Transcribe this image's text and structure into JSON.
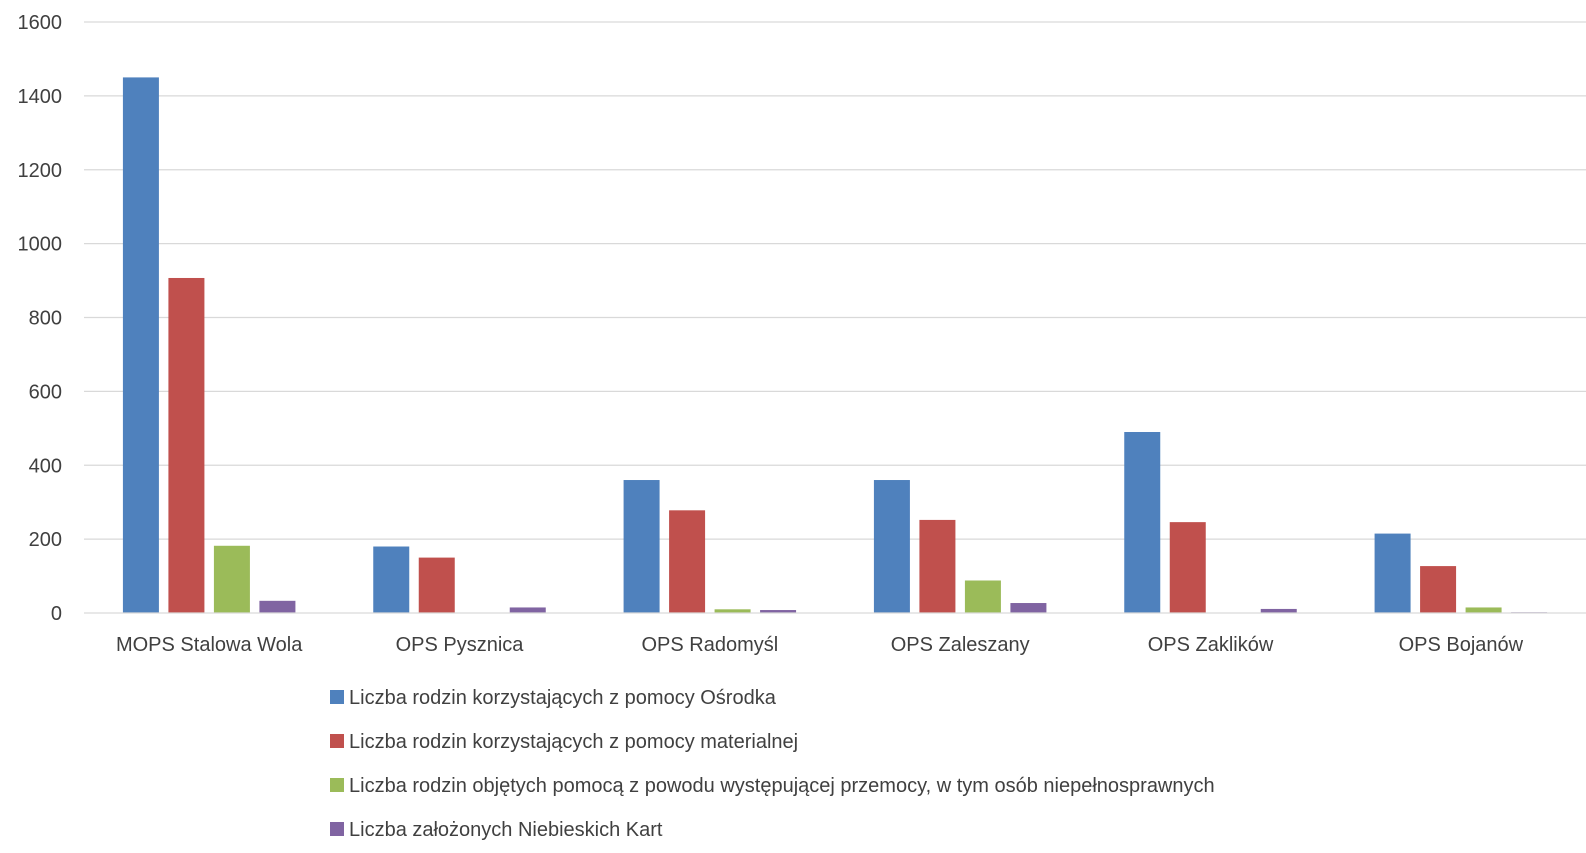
{
  "chart_data": {
    "type": "bar",
    "title": "",
    "xlabel": "",
    "ylabel": "",
    "ylim": [
      0,
      1600
    ],
    "yticks": [
      0,
      200,
      400,
      600,
      800,
      1000,
      1200,
      1400,
      1600
    ],
    "grid": true,
    "legend_position": "bottom",
    "categories": [
      "MOPS Stalowa Wola",
      "OPS Pysznica",
      "OPS Radomyśl",
      "OPS Zaleszany",
      "OPS Zaklików",
      "OPS Bojanów"
    ],
    "series": [
      {
        "name": "Liczba rodzin korzystających  z pomocy Ośrodka",
        "color": "#4f81bd",
        "values": [
          1450,
          180,
          360,
          360,
          490,
          215
        ]
      },
      {
        "name": "Liczba rodzin korzystających z pomocy materialnej",
        "color": "#c0504d",
        "values": [
          907,
          150,
          278,
          252,
          246,
          127
        ]
      },
      {
        "name": "Liczba rodzin objętych pomocą z powodu występującej przemocy, w tym osób niepełnosprawnych",
        "color": "#9bbb59",
        "values": [
          182,
          1,
          10,
          88,
          0,
          15
        ]
      },
      {
        "name": "Liczba założonych Niebieskich Kart",
        "color": "#8064a2",
        "values": [
          33,
          15,
          8,
          27,
          11,
          2
        ]
      }
    ]
  }
}
